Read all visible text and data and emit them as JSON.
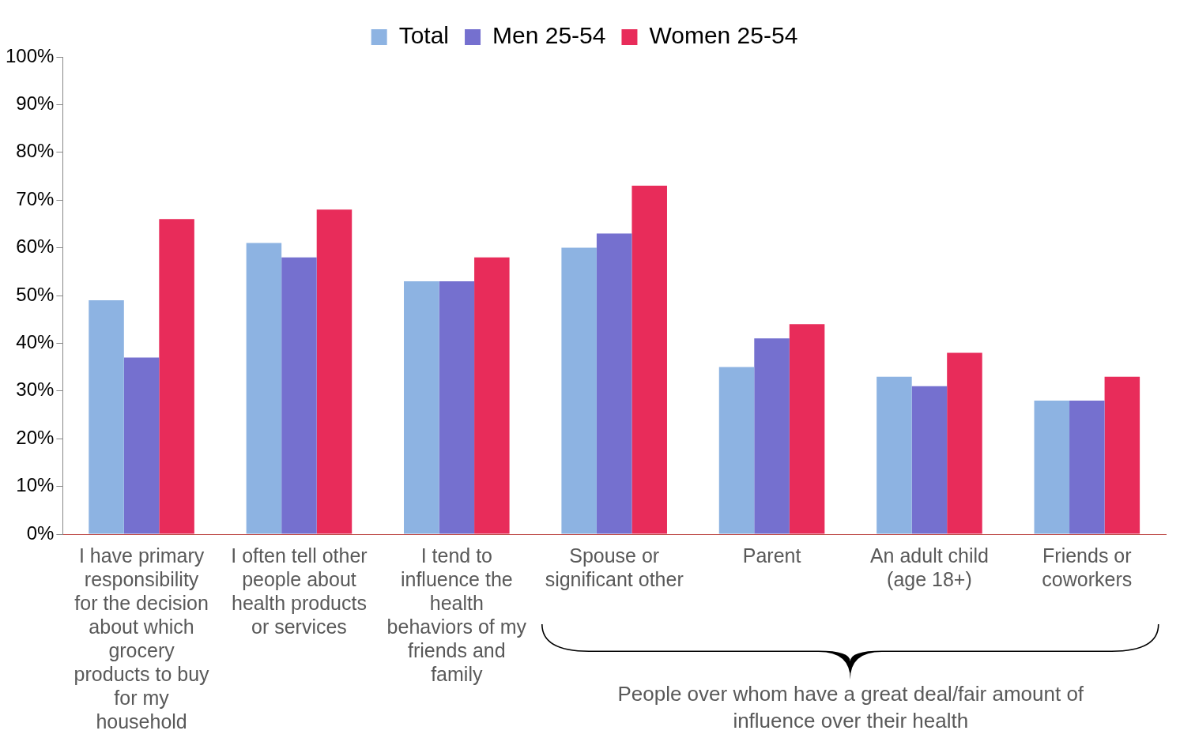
{
  "chart_data": {
    "type": "bar",
    "categories": [
      "I have primary responsibility for the decision about which grocery products to buy for my household",
      "I often tell other people about health products or services",
      "I tend to influence the health behaviors of my friends and family",
      "Spouse or significant other",
      "Parent",
      "An adult child (age 18+)",
      "Friends or coworkers"
    ],
    "series": [
      {
        "name": "Total",
        "color": "#8db3e2",
        "values": [
          49,
          61,
          53,
          60,
          35,
          33,
          28
        ]
      },
      {
        "name": "Men 25-54",
        "color": "#7570cf",
        "values": [
          37,
          58,
          53,
          63,
          41,
          31,
          28
        ]
      },
      {
        "name": "Women 25-54",
        "color": "#e82c5a",
        "values": [
          66,
          68,
          58,
          73,
          44,
          38,
          33
        ]
      }
    ],
    "ylim": [
      0,
      100
    ],
    "yticks": [
      {
        "value": 0,
        "label": "0%"
      },
      {
        "value": 10,
        "label": "10%"
      },
      {
        "value": 20,
        "label": "20%"
      },
      {
        "value": 30,
        "label": "30%"
      },
      {
        "value": 40,
        "label": "40%"
      },
      {
        "value": 50,
        "label": "50%"
      },
      {
        "value": 60,
        "label": "60%"
      },
      {
        "value": 70,
        "label": "70%"
      },
      {
        "value": 80,
        "label": "80%"
      },
      {
        "value": 90,
        "label": "90%"
      },
      {
        "value": 100,
        "label": "100%"
      }
    ],
    "grid": false,
    "legend": "top",
    "annotations": [
      "People over whom have a great deal/fair amount of influence over their health"
    ]
  }
}
